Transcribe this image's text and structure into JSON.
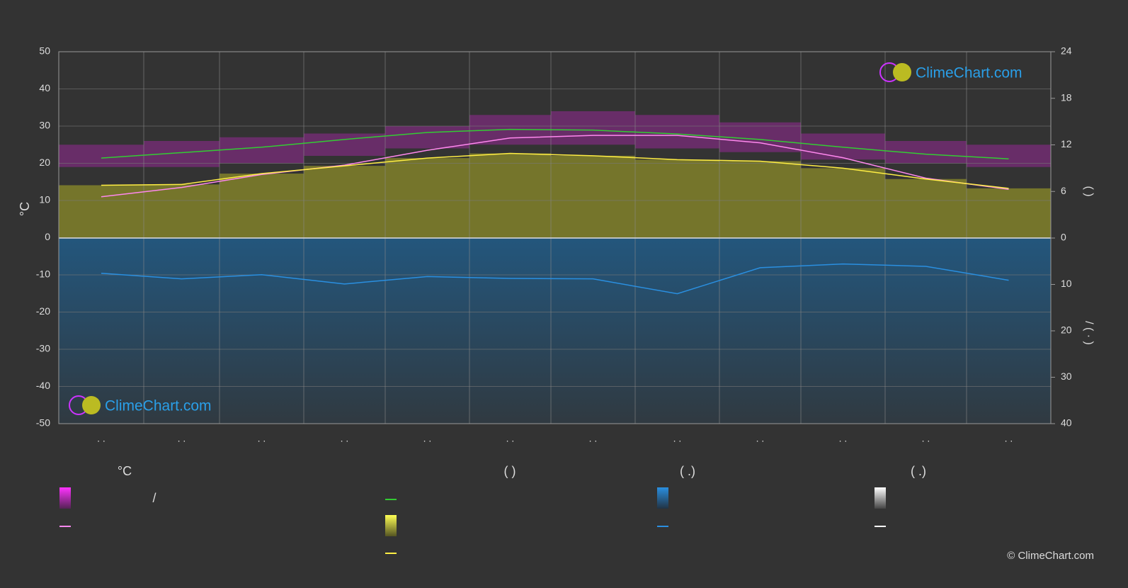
{
  "chart_data": {
    "type": "line",
    "categories": [
      ". .",
      ". .",
      ". .",
      ". .",
      ". .",
      ". .",
      ". .",
      ". .",
      ". .",
      ". .",
      ". .",
      ". ."
    ],
    "ylabel": "°C",
    "ylim": [
      -50,
      50
    ],
    "yticks": [
      -50,
      -40,
      -30,
      -20,
      -10,
      0,
      10,
      20,
      30,
      40,
      50
    ],
    "y2lim": [
      0,
      24
    ],
    "y2ticks": [
      0,
      6,
      12,
      18,
      24
    ],
    "y3lim": [
      0,
      40
    ],
    "y3ticks": [
      10,
      20,
      30,
      40
    ],
    "y2label": "(          )",
    "y3label": "/     (  ·  )",
    "grid": true,
    "temp_range": {
      "color": "#cc22cc",
      "max": [
        25,
        26,
        27,
        28,
        30,
        33,
        34,
        33,
        31,
        28,
        26,
        25
      ],
      "min": [
        19,
        19,
        20,
        22,
        24,
        25,
        25,
        24,
        23,
        21,
        20,
        19
      ]
    },
    "series": [
      {
        "color": "#ff88ee",
        "axis": "y",
        "values": [
          11,
          13.5,
          17,
          19.5,
          23.5,
          26.8,
          27.5,
          27.5,
          25.5,
          21.5,
          16,
          13
        ]
      },
      {
        "color": "#33cc33",
        "axis": "y2",
        "values": [
          10.3,
          11.0,
          11.7,
          12.7,
          13.6,
          14.0,
          13.9,
          13.4,
          12.7,
          11.7,
          10.8,
          10.2
        ]
      },
      {
        "color": "#ffee44",
        "axis": "y2",
        "values": [
          6.8,
          6.9,
          8.3,
          9.3,
          10.3,
          10.9,
          10.6,
          10.1,
          9.9,
          9.0,
          7.6,
          6.4
        ],
        "fill": "#8c8c2a"
      },
      {
        "color": "#2a8fe0",
        "axis": "y3",
        "values": [
          7.6,
          8.8,
          7.9,
          9.9,
          8.3,
          8.7,
          8.8,
          12.0,
          6.4,
          5.6,
          6.1,
          9.1
        ]
      }
    ],
    "legend": {
      "head1": "°C",
      "sep": "/",
      "head2": "(          )",
      "head3": "(   .)",
      "head4": "(   .)"
    },
    "logo": "ClimeChart.com",
    "copyright": "© ClimeChart.com"
  }
}
